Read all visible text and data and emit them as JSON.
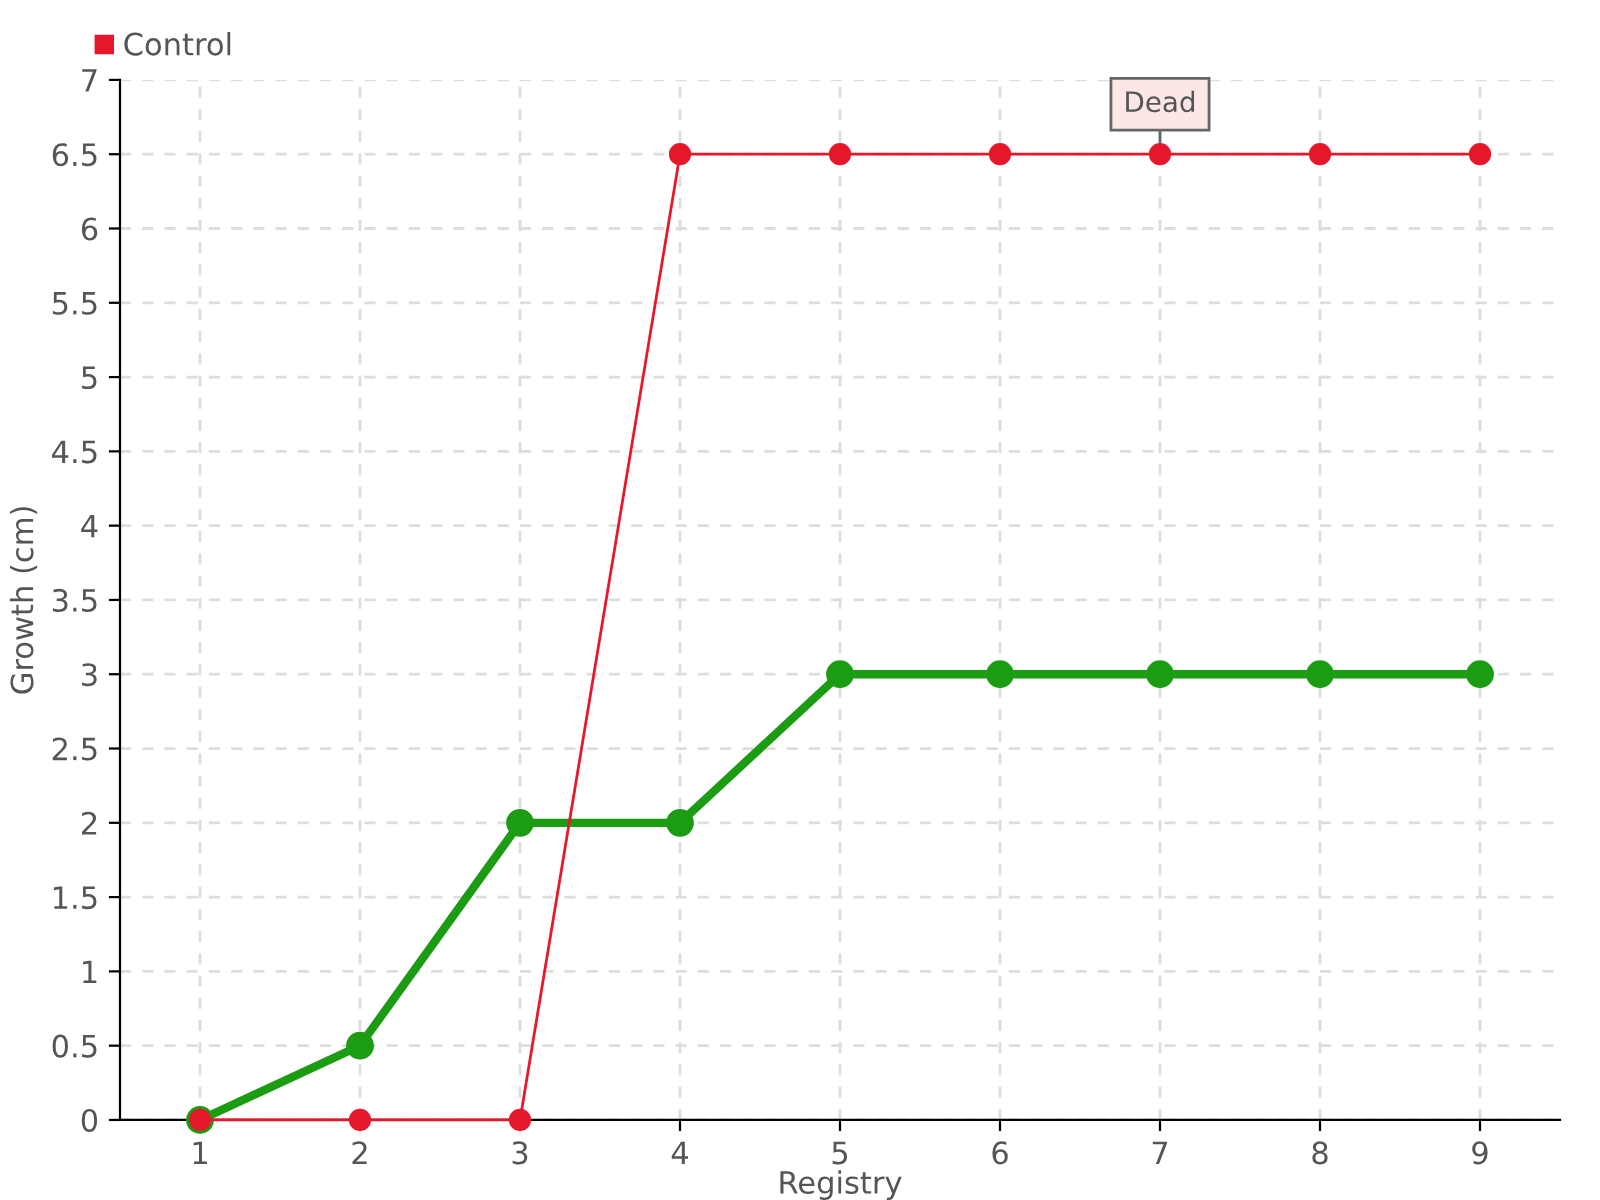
{
  "chart_data": {
    "type": "line",
    "xlabel": "Registry",
    "ylabel": "Growth (cm)",
    "x": [
      1,
      2,
      3,
      4,
      5,
      6,
      7,
      8,
      9
    ],
    "series": [
      {
        "color": "#1c9c12",
        "values": [
          0,
          0.5,
          2,
          2,
          3,
          3,
          3,
          3,
          3
        ]
      },
      {
        "name": "Control",
        "color": "#e8182c",
        "values": [
          0,
          0,
          0,
          6.5,
          6.5,
          6.5,
          6.5,
          6.5,
          6.5
        ]
      }
    ],
    "xlim": [
      0.5,
      9.5
    ],
    "xticks": [
      1,
      2,
      3,
      4,
      5,
      6,
      7,
      8,
      9
    ],
    "ylim": [
      0,
      7
    ],
    "yticks": [
      0,
      0.5,
      1,
      1.5,
      2,
      2.5,
      3,
      3.5,
      4,
      4.5,
      5,
      5.5,
      6,
      6.5,
      7
    ],
    "grid": true,
    "legend": "top left",
    "marker": "circle",
    "line_style": "solid",
    "annotations": [
      {
        "text": "Dead",
        "x": 7,
        "y": 6.5
      }
    ]
  }
}
